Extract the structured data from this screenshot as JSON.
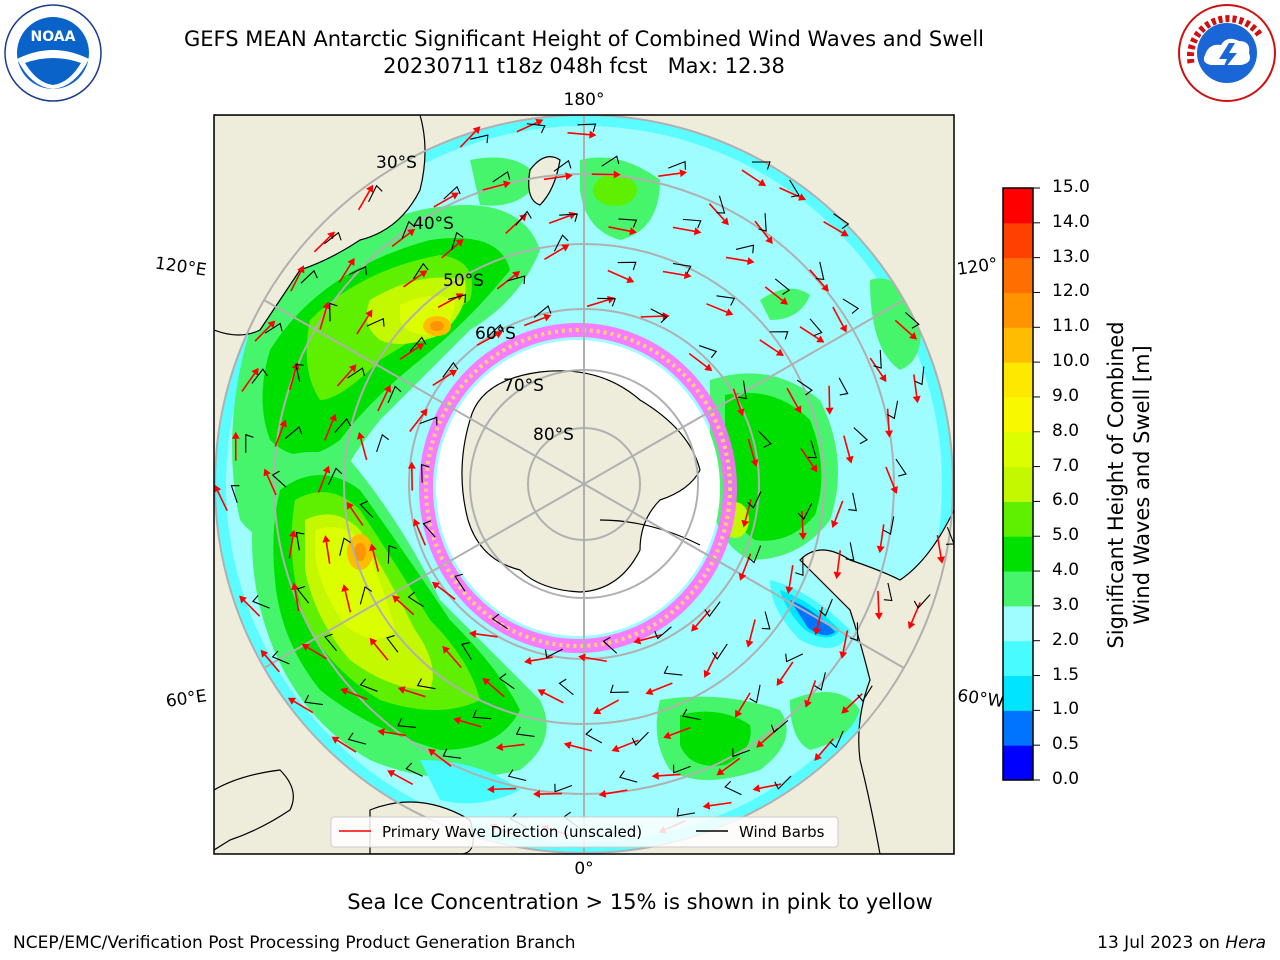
{
  "title": {
    "line1": "GEFS MEAN Antarctic Significant Height of Combined Wind Waves and Swell",
    "line2": "20230711 t18z 048h fcst   Max: 12.38"
  },
  "map": {
    "projection": "south-polar-stereographic",
    "lat_labels": [
      "30°S",
      "40°S",
      "50°S",
      "60°S",
      "70°S",
      "80°S"
    ],
    "lon_labels": {
      "top": "180°",
      "bottom": "0°",
      "upper_left": "120°E",
      "lower_left": "60°E",
      "upper_right": "120°",
      "lower_right": "60°W"
    },
    "ocean_color": "#9ffcff",
    "land_color": "#eeecdb"
  },
  "legend": {
    "primary_wave": "Primary Wave Direction (unscaled)",
    "wind_barbs": "Wind Barbs",
    "primary_wave_color": "#ff0000",
    "wind_barbs_color": "#000000"
  },
  "colorbar": {
    "label_line1": "Significant Height of Combined",
    "label_line2": "Wind Waves and Swell [m]",
    "ticks": [
      "0.0",
      "0.5",
      "1.0",
      "1.5",
      "2.0",
      "3.0",
      "4.0",
      "5.0",
      "6.0",
      "7.0",
      "8.0",
      "9.0",
      "10.0",
      "11.0",
      "12.0",
      "13.0",
      "14.0",
      "15.0"
    ],
    "colors": [
      "#0000ff",
      "#0074ff",
      "#00e4ff",
      "#48fbff",
      "#9ffcff",
      "#47f56c",
      "#00e000",
      "#5ef000",
      "#c4f800",
      "#dcff00",
      "#f8f800",
      "#ffe800",
      "#ffbc00",
      "#ff9300",
      "#ff6e00",
      "#ff4100",
      "#ff0000"
    ]
  },
  "ice_note": "Sea Ice Concentration > 15% is shown in pink to yellow",
  "footer": {
    "left": "NCEP/EMC/Verification Post Processing Product Generation Branch",
    "right_date": "13 Jul 2023 on ",
    "right_machine": "Hera"
  },
  "logos": {
    "left": "noaa-logo",
    "right": "nws-logo",
    "left_text": "NOAA",
    "right_text": "NATIONAL WEATHER SERVICE"
  }
}
